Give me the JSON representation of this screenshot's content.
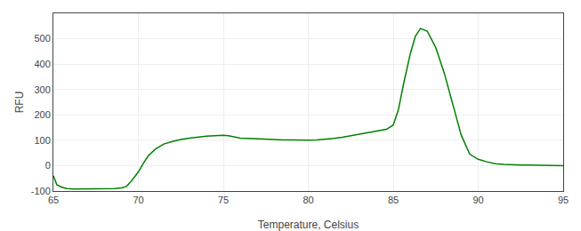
{
  "chart_data": {
    "type": "line",
    "xlabel": "Temperature, Celsius",
    "ylabel": "RFU",
    "color": "#008000",
    "grid": true,
    "xlim": [
      65,
      95
    ],
    "ylim": [
      -100,
      600
    ],
    "xticks": [
      65,
      70,
      75,
      80,
      85,
      90,
      95
    ],
    "yticks": [
      -100,
      0,
      100,
      200,
      300,
      400,
      500
    ],
    "x": [
      65.0,
      65.2,
      65.5,
      65.8,
      66.2,
      66.7,
      67.0,
      67.3,
      67.6,
      68.0,
      68.3,
      68.6,
      69.0,
      69.3,
      69.6,
      70.0,
      70.3,
      70.6,
      71.0,
      71.5,
      72.0,
      72.5,
      73.0,
      73.5,
      74.0,
      74.5,
      75.0,
      75.3,
      75.6,
      76.0,
      76.5,
      77.0,
      77.5,
      78.0,
      78.5,
      79.0,
      79.5,
      80.0,
      80.5,
      81.0,
      81.5,
      82.0,
      82.5,
      83.0,
      83.3,
      83.6,
      84.0,
      84.3,
      84.6,
      85.0,
      85.3,
      85.6,
      86.0,
      86.3,
      86.6,
      87.0,
      87.5,
      88.0,
      88.5,
      89.0,
      89.5,
      90.0,
      90.5,
      91.0,
      91.5,
      92.0,
      92.5,
      93.0,
      93.5,
      94.0,
      94.5,
      95.0
    ],
    "values": [
      -40,
      -75,
      -85,
      -90,
      -92,
      -92,
      -92,
      -91,
      -91,
      -90,
      -90,
      -90,
      -88,
      -82,
      -60,
      -25,
      10,
      40,
      65,
      85,
      95,
      103,
      108,
      113,
      116,
      118,
      120,
      118,
      113,
      108,
      107,
      105,
      103,
      102,
      101,
      101,
      100,
      100,
      101,
      103,
      107,
      112,
      118,
      125,
      128,
      130,
      135,
      138,
      143,
      160,
      220,
      320,
      440,
      510,
      540,
      530,
      465,
      365,
      240,
      120,
      45,
      25,
      15,
      8,
      5,
      3,
      2,
      2,
      1,
      1,
      0,
      0
    ]
  }
}
